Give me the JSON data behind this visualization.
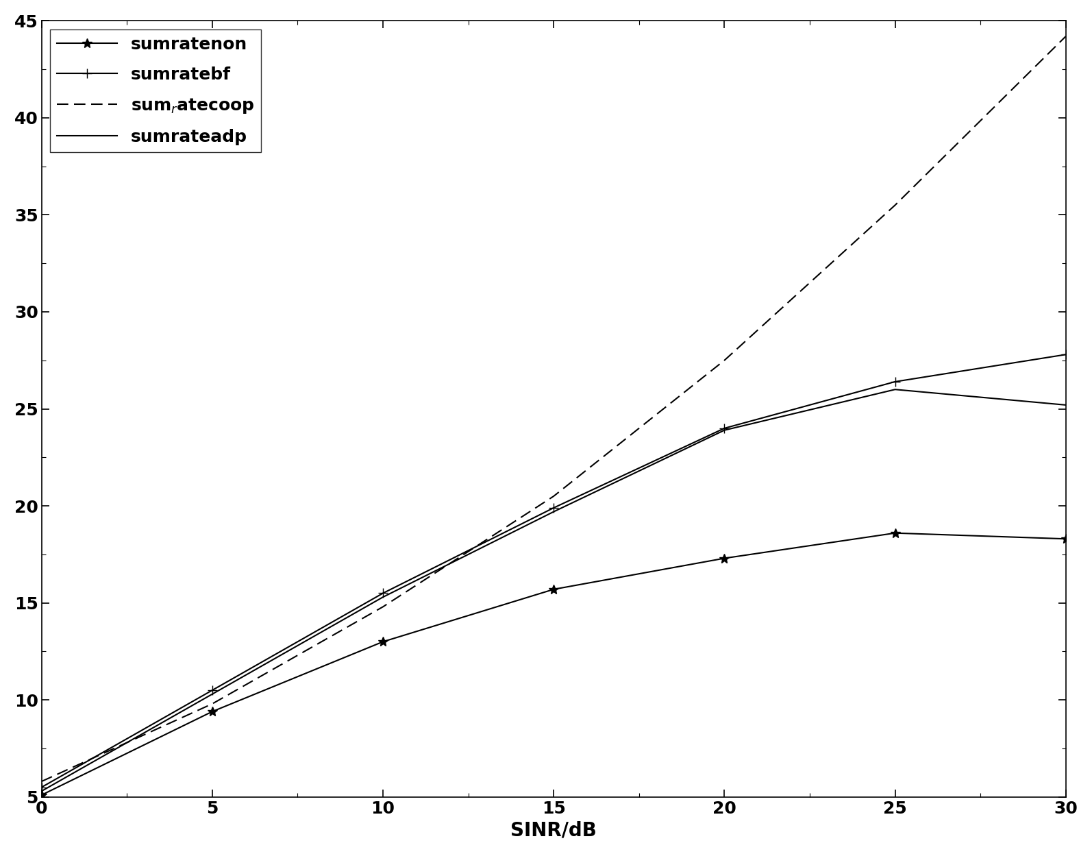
{
  "x": [
    0,
    5,
    10,
    15,
    20,
    25,
    30
  ],
  "sumratenon": [
    5.1,
    9.4,
    13.0,
    15.7,
    17.3,
    18.6,
    18.3
  ],
  "sumratebf": [
    5.5,
    10.5,
    15.5,
    19.9,
    24.0,
    26.4,
    27.8
  ],
  "sumratecoop": [
    5.8,
    9.8,
    14.8,
    20.5,
    27.5,
    35.5,
    44.2
  ],
  "sumrateadp": [
    5.3,
    10.3,
    15.3,
    19.7,
    23.9,
    26.0,
    25.2
  ],
  "xlabel": "SINR/dB",
  "xlim": [
    0,
    30
  ],
  "ylim": [
    5,
    45
  ],
  "xticks": [
    0,
    5,
    10,
    15,
    20,
    25,
    30
  ],
  "yticks": [
    5,
    10,
    15,
    20,
    25,
    30,
    35,
    40,
    45
  ],
  "line_color": "#000000",
  "bg_color": "#ffffff",
  "linewidth": 1.5,
  "marker_size_star": 10,
  "marker_size_plus": 10,
  "legend_fontsize": 18,
  "tick_labelsize": 18,
  "xlabel_fontsize": 20
}
